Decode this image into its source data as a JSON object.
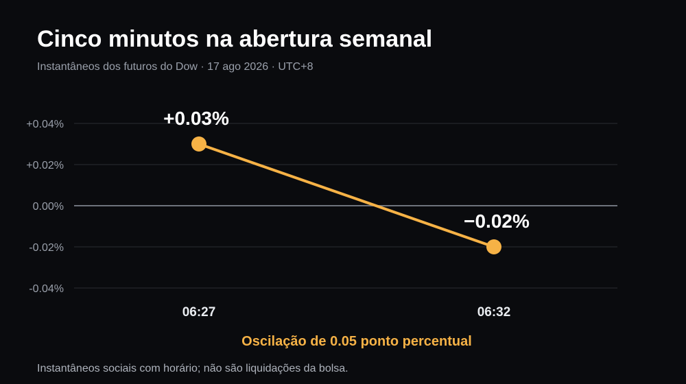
{
  "header": {
    "title": "Cinco minutos na abertura semanal",
    "subtitle": "Instantâneos dos futuros do Dow · 17 ago 2026 · UTC+8"
  },
  "footer": {
    "note": "Instantâneos sociais com horário; não são liquidações da bolsa."
  },
  "colors": {
    "accent": "#f6b246",
    "background": "#0a0b0e",
    "grid": "#2a2d33",
    "zero_line": "#6e737c"
  },
  "chart_data": {
    "type": "line",
    "title": "Cinco minutos na abertura semanal",
    "subtitle": "Instantâneos dos futuros do Dow · 17 ago 2026 · UTC+8",
    "x": [
      "06:27",
      "06:32"
    ],
    "series": [
      {
        "values": [
          0.03,
          -0.02
        ],
        "labels": [
          "+0.03%",
          "−0.02%"
        ]
      }
    ],
    "ylim": [
      -0.04,
      0.04
    ],
    "yticks": [
      0.04,
      0.02,
      0,
      -0.02,
      -0.04
    ],
    "ytick_labels": [
      "+0.04%",
      "+0.02%",
      "0.00%",
      "-0.02%",
      "-0.04%"
    ],
    "grid": true,
    "legend": "none",
    "annotation": "Oscilação de 0.05 ponto percentual"
  }
}
